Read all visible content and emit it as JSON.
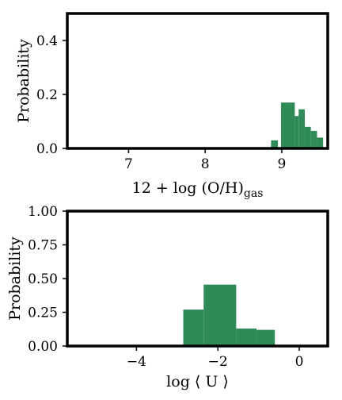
{
  "chart_data": [
    {
      "type": "bar",
      "panel": "top",
      "ylabel": "Probability",
      "xlabel_main": "12 + log (O/H)",
      "xlabel_sub": "gas",
      "xlim": [
        6.2,
        9.6
      ],
      "ylim": [
        0.0,
        0.5
      ],
      "xticks": [
        7,
        8,
        9
      ],
      "xtick_labels": [
        "7",
        "8",
        "9"
      ],
      "yticks": [
        0.0,
        0.2,
        0.4
      ],
      "ytick_labels": [
        "0.0",
        "0.2",
        "0.4"
      ],
      "bar_color": "#2e8b57",
      "bins": [
        {
          "x0": 8.86,
          "x1": 8.95,
          "value": 0.03
        },
        {
          "x0": 8.99,
          "x1": 9.17,
          "value": 0.17
        },
        {
          "x0": 9.17,
          "x1": 9.22,
          "value": 0.12
        },
        {
          "x0": 9.22,
          "x1": 9.3,
          "value": 0.145
        },
        {
          "x0": 9.3,
          "x1": 9.38,
          "value": 0.08
        },
        {
          "x0": 9.38,
          "x1": 9.46,
          "value": 0.065
        },
        {
          "x0": 9.46,
          "x1": 9.54,
          "value": 0.04
        }
      ]
    },
    {
      "type": "bar",
      "panel": "bottom",
      "ylabel": "Probability",
      "xlabel": "log ⟨ U ⟩",
      "xlim": [
        -5.7,
        0.7
      ],
      "ylim": [
        0.0,
        1.0
      ],
      "xticks": [
        -4,
        -2,
        0
      ],
      "xtick_labels": [
        "−4",
        "−2",
        "0"
      ],
      "yticks": [
        0.0,
        0.25,
        0.5,
        0.75,
        1.0
      ],
      "ytick_labels": [
        "0.00",
        "0.25",
        "0.50",
        "0.75",
        "1.00"
      ],
      "bar_color": "#2e8b57",
      "bins": [
        {
          "x0": -2.85,
          "x1": -2.35,
          "value": 0.27
        },
        {
          "x0": -2.35,
          "x1": -1.55,
          "value": 0.455
        },
        {
          "x0": -1.55,
          "x1": -1.05,
          "value": 0.13
        },
        {
          "x0": -1.05,
          "x1": -0.6,
          "value": 0.12
        }
      ]
    }
  ]
}
